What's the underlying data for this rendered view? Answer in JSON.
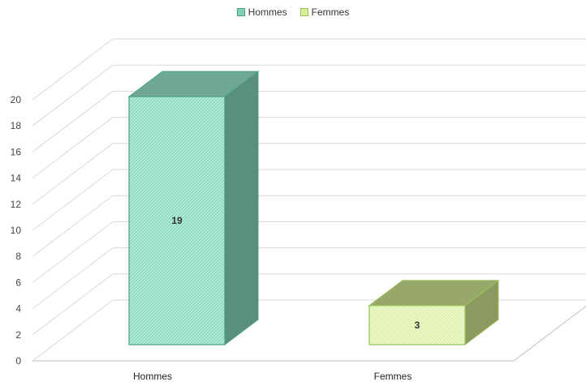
{
  "chart_data": {
    "type": "bar",
    "title": "",
    "xlabel": "",
    "ylabel": "",
    "categories": [
      "Hommes",
      "Femmes"
    ],
    "series": [
      {
        "name": "Hommes",
        "values": [
          19,
          null
        ],
        "color": "#7fd0b8",
        "side_color": "#5a8f7c",
        "top_color": "#6fa896",
        "edge": "#4aa184"
      },
      {
        "name": "Femmes",
        "values": [
          null,
          3
        ],
        "color": "#d8ef9a",
        "side_color": "#8b9b60",
        "top_color": "#97a86a",
        "edge": "#9ac25a"
      }
    ],
    "data_labels": [
      "19",
      "3"
    ],
    "ylim": [
      0,
      20
    ],
    "yticks": [
      "0",
      "2",
      "4",
      "6",
      "8",
      "10",
      "12",
      "14",
      "16",
      "18",
      "20"
    ],
    "grid": true,
    "legend_position": "top"
  }
}
